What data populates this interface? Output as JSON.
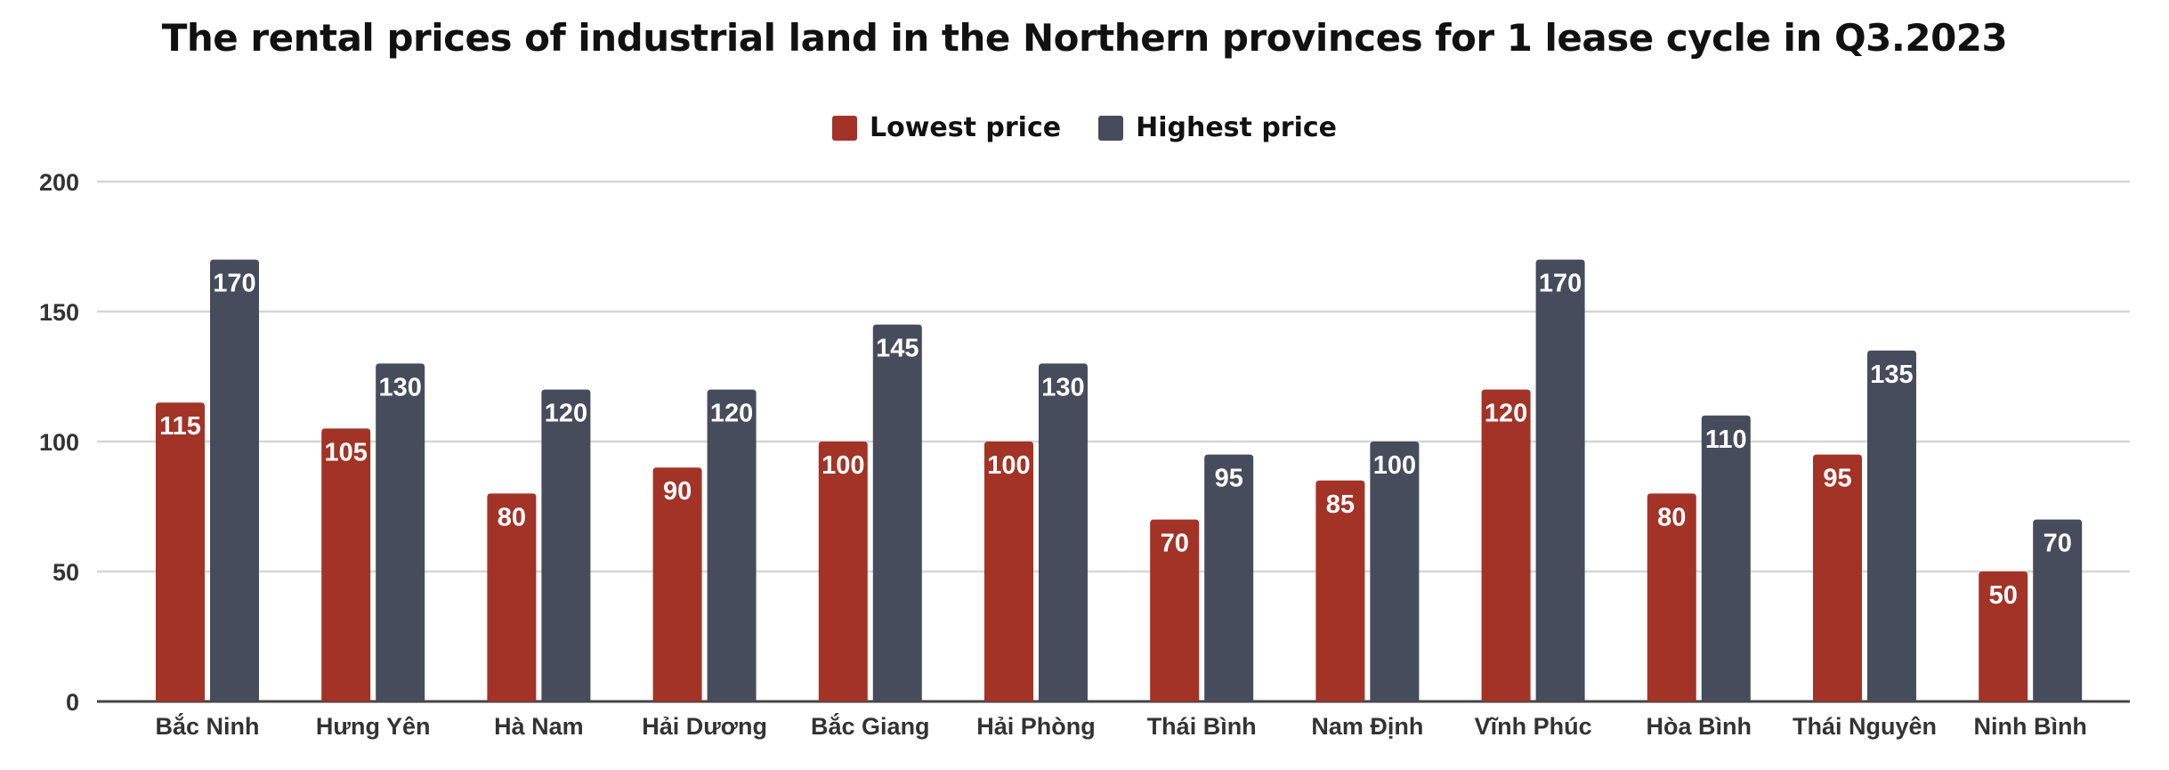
{
  "chart_data": {
    "type": "bar",
    "title": "The rental prices of industrial land in the Northern provinces for 1 lease cycle in Q3.2023",
    "xlabel": "",
    "ylabel": "",
    "ylim": [
      0,
      200
    ],
    "yticks": [
      0,
      50,
      100,
      150,
      200
    ],
    "grid": true,
    "legend_position": "top",
    "categories": [
      "Bắc Ninh",
      "Hưng Yên",
      "Hà Nam",
      "Hải Dương",
      "Bắc Giang",
      "Hải Phòng",
      "Thái Bình",
      "Nam Định",
      "Vĩnh Phúc",
      "Hòa Bình",
      "Thái Nguyên",
      "Ninh Bình"
    ],
    "series": [
      {
        "name": "Lowest price",
        "color": "#a33327",
        "values": [
          115,
          105,
          80,
          90,
          100,
          100,
          70,
          85,
          120,
          80,
          95,
          50
        ]
      },
      {
        "name": "Highest price",
        "color": "#464c5b",
        "values": [
          170,
          130,
          120,
          120,
          145,
          130,
          95,
          100,
          170,
          110,
          135,
          70
        ]
      }
    ]
  }
}
